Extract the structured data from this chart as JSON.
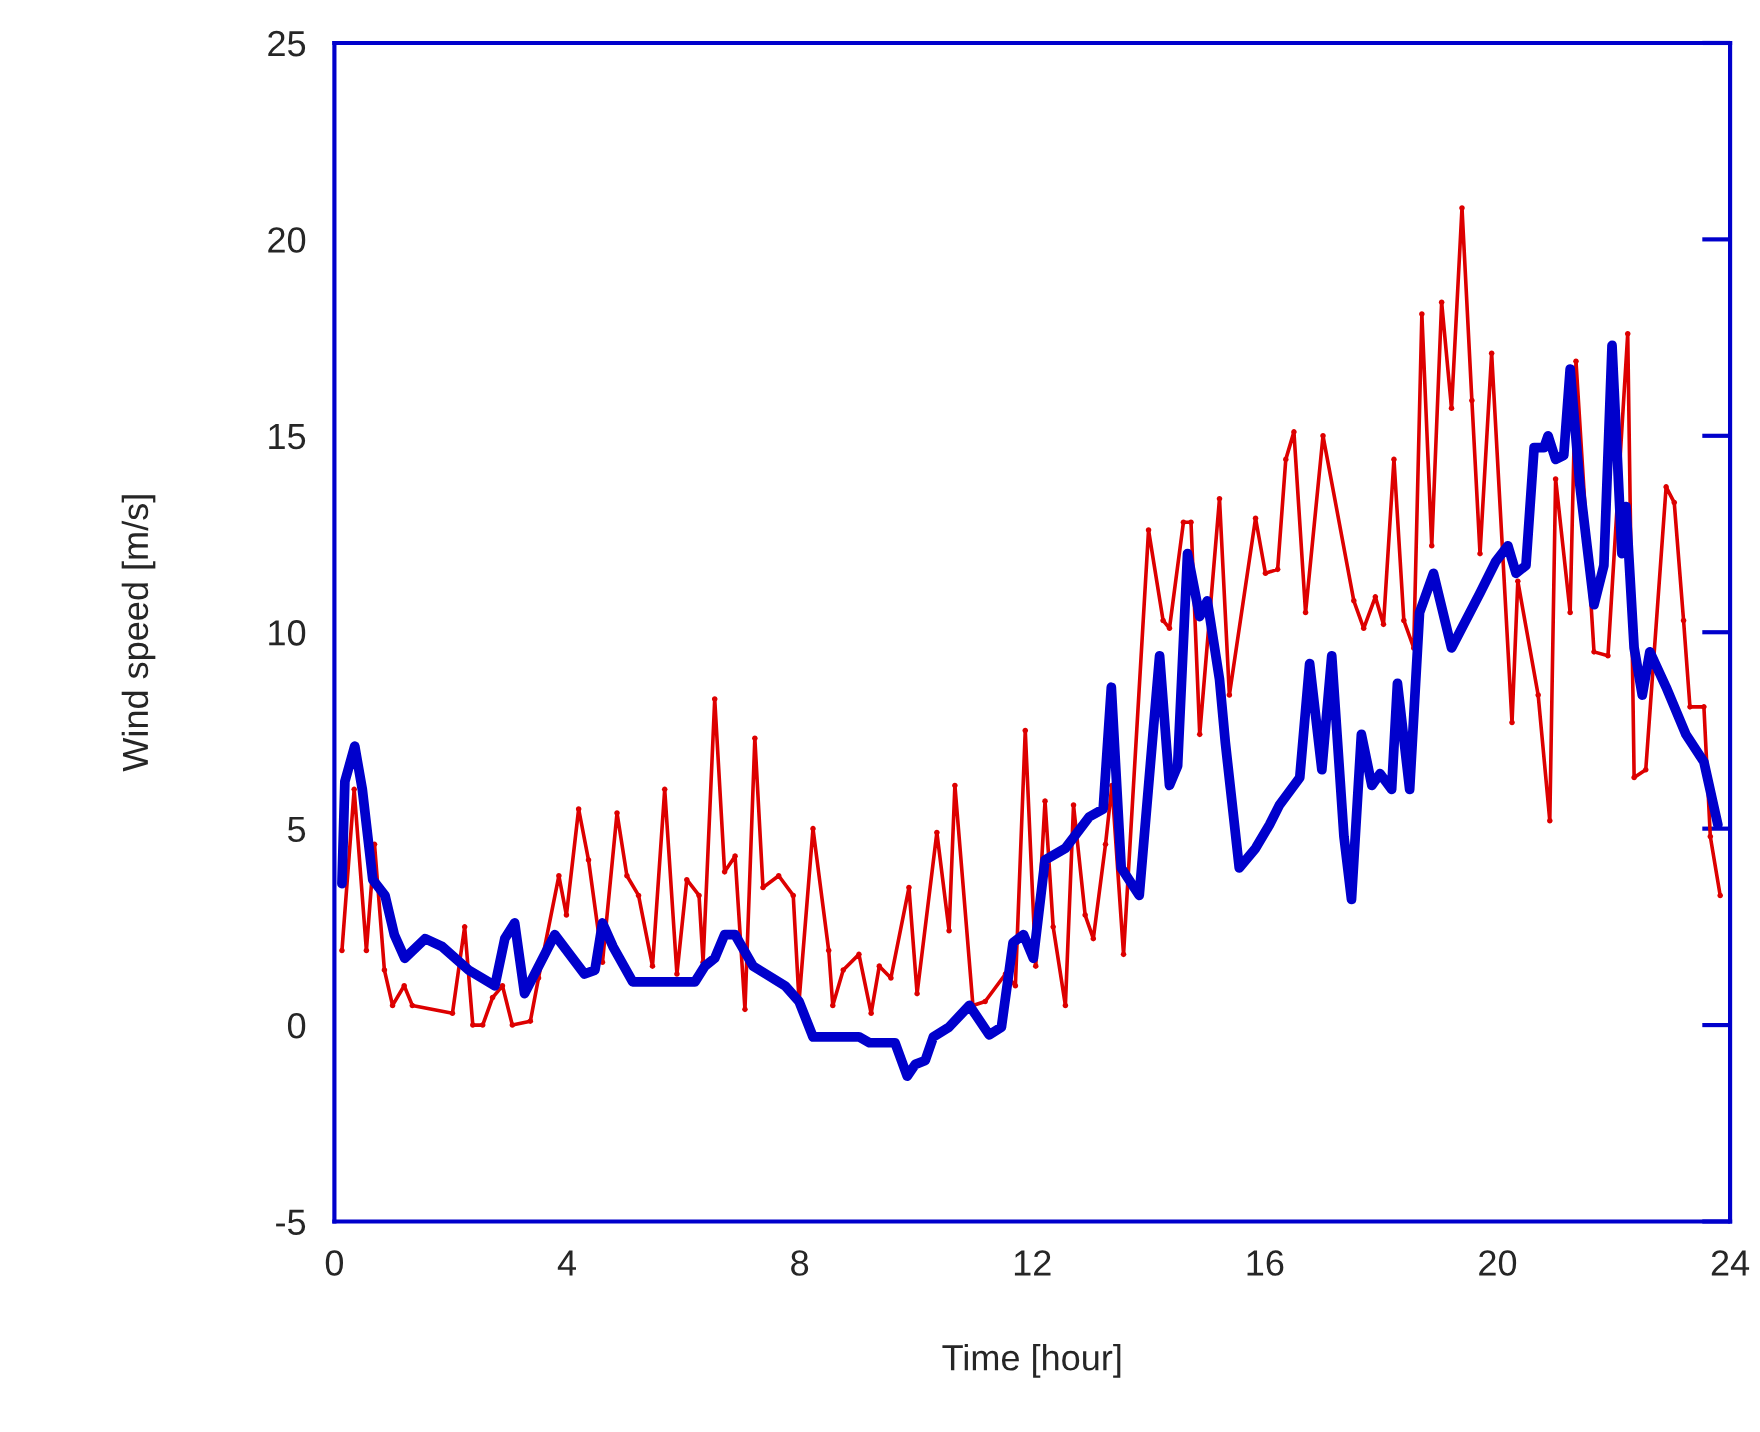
{
  "chart_data": {
    "type": "line",
    "xlabel": "Time [hour]",
    "ylabel": "Wind speed [m/s]",
    "xlim": [
      0,
      24
    ],
    "ylim": [
      -5,
      25
    ],
    "xticks": [
      0,
      4,
      8,
      12,
      16,
      20,
      24
    ],
    "yticks": [
      -5,
      0,
      5,
      10,
      15,
      20,
      25
    ],
    "grid": false,
    "legend": false,
    "series": [
      {
        "color": "#dd0000",
        "marker": "circle",
        "line_style": "solid",
        "x": [
          0.13,
          0.34,
          0.55,
          0.69,
          0.86,
          1.0,
          1.2,
          1.34,
          2.03,
          2.24,
          2.38,
          2.55,
          2.72,
          2.89,
          3.06,
          3.37,
          3.51,
          3.86,
          3.99,
          4.2,
          4.37,
          4.61,
          4.86,
          5.03,
          5.23,
          5.47,
          5.68,
          5.89,
          6.06,
          6.27,
          6.34,
          6.54,
          6.71,
          6.89,
          7.06,
          7.23,
          7.37,
          7.64,
          7.89,
          7.99,
          8.23,
          8.5,
          8.57,
          8.75,
          9.02,
          9.23,
          9.37,
          9.57,
          9.88,
          10.02,
          10.36,
          10.57,
          10.67,
          10.98,
          11.19,
          11.54,
          11.71,
          11.88,
          12.06,
          12.22,
          12.36,
          12.57,
          12.71,
          12.91,
          13.05,
          13.26,
          13.37,
          13.57,
          14.0,
          14.25,
          14.36,
          14.6,
          14.73,
          14.88,
          15.22,
          15.39,
          15.84,
          16.01,
          16.22,
          16.36,
          16.5,
          16.7,
          17.0,
          17.53,
          17.7,
          17.9,
          18.04,
          18.22,
          18.39,
          18.56,
          18.7,
          18.87,
          19.04,
          19.21,
          19.39,
          19.56,
          19.7,
          19.9,
          20.25,
          20.35,
          20.7,
          20.9,
          21.0,
          21.25,
          21.35,
          21.66,
          21.9,
          22.24,
          22.35,
          22.55,
          22.9,
          23.04,
          23.2,
          23.31,
          23.55,
          23.66,
          23.83
        ],
        "values": [
          1.9,
          6.0,
          1.9,
          4.6,
          1.4,
          0.5,
          1.0,
          0.5,
          0.3,
          2.5,
          0.0,
          0.0,
          0.7,
          1.0,
          0.0,
          0.1,
          1.2,
          3.8,
          2.8,
          5.5,
          4.2,
          1.6,
          5.4,
          3.8,
          3.3,
          1.5,
          6.0,
          1.3,
          3.7,
          3.3,
          1.6,
          8.3,
          3.9,
          4.3,
          0.4,
          7.3,
          3.5,
          3.8,
          3.3,
          0.6,
          5.0,
          1.9,
          0.5,
          1.4,
          1.8,
          0.3,
          1.5,
          1.2,
          3.5,
          0.8,
          4.9,
          2.4,
          6.1,
          0.5,
          0.6,
          1.3,
          1.0,
          7.5,
          1.5,
          5.7,
          2.5,
          0.5,
          5.6,
          2.8,
          2.2,
          4.6,
          6.1,
          1.8,
          12.6,
          10.3,
          10.1,
          12.8,
          12.8,
          7.4,
          13.4,
          8.4,
          12.9,
          11.5,
          11.6,
          14.4,
          15.1,
          10.5,
          15.0,
          10.8,
          10.1,
          10.9,
          10.2,
          14.4,
          10.3,
          9.6,
          18.1,
          12.2,
          18.4,
          15.7,
          20.8,
          15.9,
          12.0,
          17.1,
          7.7,
          11.3,
          8.4,
          5.2,
          13.9,
          10.5,
          16.9,
          9.5,
          9.4,
          17.6,
          6.3,
          6.5,
          13.7,
          13.3,
          10.3,
          8.1,
          8.1,
          4.8,
          3.3
        ]
      },
      {
        "color": "#0000cc",
        "marker": "none",
        "line_style": "solid",
        "x": [
          0.13,
          0.18,
          0.35,
          0.48,
          0.66,
          0.87,
          1.03,
          1.21,
          1.56,
          1.85,
          2.31,
          2.76,
          2.93,
          3.1,
          3.27,
          3.79,
          4.3,
          4.48,
          4.61,
          4.79,
          5.13,
          6.2,
          6.37,
          6.54,
          6.71,
          6.89,
          7.2,
          7.75,
          7.99,
          8.23,
          8.5,
          9.02,
          9.2,
          9.64,
          9.85,
          9.99,
          10.16,
          10.3,
          10.57,
          10.92,
          11.26,
          11.47,
          11.67,
          11.85,
          12.02,
          12.22,
          12.57,
          12.98,
          13.22,
          13.36,
          13.53,
          13.84,
          14.19,
          14.36,
          14.5,
          14.67,
          14.88,
          15.01,
          15.22,
          15.32,
          15.56,
          15.84,
          16.08,
          16.25,
          16.6,
          16.77,
          16.98,
          17.15,
          17.36,
          17.49,
          17.66,
          17.84,
          17.98,
          18.18,
          18.28,
          18.49,
          18.66,
          18.9,
          19.21,
          19.7,
          19.97,
          20.18,
          20.32,
          20.49,
          20.63,
          20.8,
          20.87,
          21.0,
          21.14,
          21.25,
          21.42,
          21.66,
          21.83,
          21.97,
          22.14,
          22.21,
          22.35,
          22.49,
          22.62,
          22.9,
          23.24,
          23.55,
          23.79
        ],
        "values": [
          3.6,
          6.2,
          7.1,
          6.0,
          3.7,
          3.3,
          2.3,
          1.7,
          2.2,
          2.0,
          1.4,
          1.0,
          2.2,
          2.6,
          0.8,
          2.3,
          1.3,
          1.4,
          2.6,
          2.0,
          1.1,
          1.1,
          1.5,
          1.7,
          2.3,
          2.3,
          1.5,
          1.0,
          0.6,
          -0.3,
          -0.3,
          -0.3,
          -0.45,
          -0.45,
          -1.3,
          -1.0,
          -0.9,
          -0.3,
          -0.05,
          0.5,
          -0.25,
          -0.05,
          2.1,
          2.3,
          1.7,
          4.2,
          4.5,
          5.3,
          5.5,
          8.6,
          4.0,
          3.3,
          9.4,
          6.1,
          6.6,
          12.0,
          10.4,
          10.8,
          8.8,
          7.2,
          4.0,
          4.5,
          5.1,
          5.6,
          6.3,
          9.2,
          6.5,
          9.4,
          4.8,
          3.2,
          7.4,
          6.1,
          6.4,
          6.0,
          8.7,
          6.0,
          10.5,
          11.5,
          9.6,
          11.0,
          11.8,
          12.2,
          11.5,
          11.7,
          14.7,
          14.7,
          15.0,
          14.4,
          14.5,
          16.7,
          13.7,
          10.7,
          11.7,
          17.3,
          12.0,
          13.2,
          9.6,
          8.4,
          9.5,
          8.6,
          7.4,
          6.7,
          5.1
        ]
      }
    ]
  }
}
